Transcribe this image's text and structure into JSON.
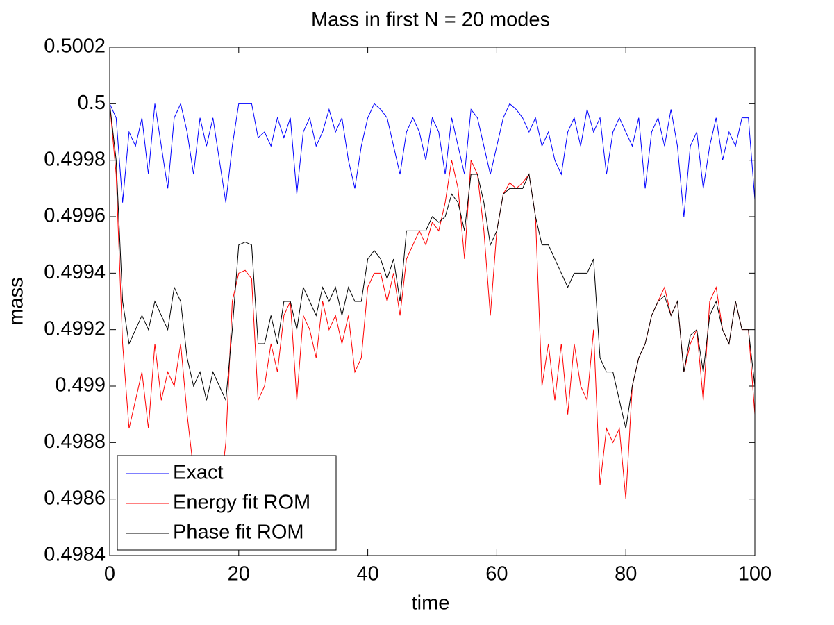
{
  "chart_data": {
    "type": "line",
    "title": "Mass in first N = 20 modes",
    "xlabel": "time",
    "ylabel": "mass",
    "x": [
      0,
      1,
      2,
      3,
      4,
      5,
      6,
      7,
      8,
      9,
      10,
      11,
      12,
      13,
      14,
      15,
      16,
      17,
      18,
      19,
      20,
      21,
      22,
      23,
      24,
      25,
      26,
      27,
      28,
      29,
      30,
      31,
      32,
      33,
      34,
      35,
      36,
      37,
      38,
      39,
      40,
      41,
      42,
      43,
      44,
      45,
      46,
      47,
      48,
      49,
      50,
      51,
      52,
      53,
      54,
      55,
      56,
      57,
      58,
      59,
      60,
      61,
      62,
      63,
      64,
      65,
      66,
      67,
      68,
      69,
      70,
      71,
      72,
      73,
      74,
      75,
      76,
      77,
      78,
      79,
      80,
      81,
      82,
      83,
      84,
      85,
      86,
      87,
      88,
      89,
      90,
      91,
      92,
      93,
      94,
      95,
      96,
      97,
      98,
      99,
      100
    ],
    "series": [
      {
        "name": "Exact",
        "color": "#0000ff",
        "values": [
          0.5,
          0.49995,
          0.49965,
          0.4999,
          0.49985,
          0.49995,
          0.49975,
          0.5,
          0.49985,
          0.4997,
          0.49995,
          0.5,
          0.4999,
          0.49975,
          0.49995,
          0.49985,
          0.49995,
          0.4998,
          0.49965,
          0.49985,
          0.5,
          0.5,
          0.5,
          0.49988,
          0.4999,
          0.49985,
          0.49995,
          0.49988,
          0.49995,
          0.49968,
          0.4999,
          0.49995,
          0.49985,
          0.4999,
          0.49998,
          0.4999,
          0.49995,
          0.4998,
          0.4997,
          0.49985,
          0.49995,
          0.5,
          0.49998,
          0.49995,
          0.49985,
          0.49975,
          0.4999,
          0.49995,
          0.4999,
          0.4998,
          0.49995,
          0.4999,
          0.49975,
          0.49995,
          0.49985,
          0.49975,
          0.49998,
          0.49995,
          0.49985,
          0.49975,
          0.49985,
          0.49995,
          0.5,
          0.49998,
          0.49995,
          0.4999,
          0.49995,
          0.49985,
          0.4999,
          0.4998,
          0.49975,
          0.4999,
          0.49995,
          0.49985,
          0.49998,
          0.4999,
          0.49995,
          0.49975,
          0.4999,
          0.49995,
          0.4999,
          0.49985,
          0.49995,
          0.4997,
          0.4999,
          0.49995,
          0.49985,
          0.49998,
          0.49985,
          0.4996,
          0.49985,
          0.4999,
          0.4997,
          0.49985,
          0.49995,
          0.4998,
          0.4999,
          0.49985,
          0.49995,
          0.49995,
          0.49966
        ]
      },
      {
        "name": "Energy fit ROM",
        "color": "#ff0000",
        "values": [
          0.5,
          0.49975,
          0.49915,
          0.49885,
          0.49895,
          0.49905,
          0.49885,
          0.49915,
          0.49895,
          0.49905,
          0.499,
          0.49915,
          0.4989,
          0.4987,
          0.4986,
          0.49855,
          0.4985,
          0.4986,
          0.4988,
          0.4993,
          0.4994,
          0.49941,
          0.49938,
          0.49895,
          0.499,
          0.49915,
          0.49905,
          0.49925,
          0.4993,
          0.49895,
          0.49925,
          0.4992,
          0.4991,
          0.4993,
          0.4992,
          0.49925,
          0.49915,
          0.49925,
          0.49905,
          0.4991,
          0.49935,
          0.4994,
          0.4994,
          0.4993,
          0.4994,
          0.49925,
          0.49945,
          0.4995,
          0.49955,
          0.4995,
          0.49958,
          0.49955,
          0.49965,
          0.4998,
          0.4997,
          0.49945,
          0.4998,
          0.49975,
          0.49955,
          0.49925,
          0.49955,
          0.49968,
          0.49972,
          0.4997,
          0.49972,
          0.49975,
          0.4996,
          0.499,
          0.49915,
          0.49895,
          0.49915,
          0.4989,
          0.49915,
          0.499,
          0.49895,
          0.4992,
          0.49865,
          0.49885,
          0.4988,
          0.49885,
          0.4986,
          0.499,
          0.4991,
          0.49915,
          0.49925,
          0.4993,
          0.49935,
          0.49925,
          0.4993,
          0.49905,
          0.49915,
          0.4992,
          0.49895,
          0.4993,
          0.49935,
          0.4992,
          0.49915,
          0.4993,
          0.4992,
          0.4992,
          0.4989
        ]
      },
      {
        "name": "Phase fit ROM",
        "color": "#000000",
        "values": [
          0.5,
          0.4998,
          0.4993,
          0.49915,
          0.4992,
          0.49925,
          0.4992,
          0.4993,
          0.49925,
          0.4992,
          0.49935,
          0.4993,
          0.4991,
          0.499,
          0.49905,
          0.49895,
          0.49905,
          0.499,
          0.49895,
          0.4992,
          0.4995,
          0.49951,
          0.4995,
          0.49915,
          0.49915,
          0.49925,
          0.49915,
          0.4993,
          0.4993,
          0.4992,
          0.49935,
          0.4993,
          0.49925,
          0.49935,
          0.4993,
          0.49935,
          0.49925,
          0.49935,
          0.4993,
          0.4993,
          0.49945,
          0.49948,
          0.49945,
          0.49938,
          0.49945,
          0.4993,
          0.49955,
          0.49955,
          0.49955,
          0.49955,
          0.4996,
          0.49958,
          0.4996,
          0.49968,
          0.49965,
          0.49955,
          0.49975,
          0.49975,
          0.49965,
          0.4995,
          0.49955,
          0.49968,
          0.4997,
          0.4997,
          0.4997,
          0.49975,
          0.4996,
          0.4995,
          0.4995,
          0.49945,
          0.4994,
          0.49935,
          0.4994,
          0.4994,
          0.4994,
          0.49945,
          0.4991,
          0.49905,
          0.49905,
          0.49895,
          0.49885,
          0.499,
          0.4991,
          0.49915,
          0.49925,
          0.4993,
          0.49932,
          0.49925,
          0.4993,
          0.49905,
          0.49918,
          0.4992,
          0.49905,
          0.49925,
          0.4993,
          0.4992,
          0.49915,
          0.4993,
          0.4992,
          0.4992,
          0.499
        ]
      }
    ],
    "xlim": [
      0,
      100
    ],
    "xticks": [
      0,
      20,
      40,
      60,
      80,
      100
    ],
    "ylim": [
      0.4984,
      0.5002
    ],
    "yticks": [
      0.4984,
      0.4986,
      0.4988,
      0.499,
      0.4992,
      0.4994,
      0.4996,
      0.4998,
      0.5,
      0.5002
    ],
    "grid": false,
    "legend": "lower left"
  }
}
